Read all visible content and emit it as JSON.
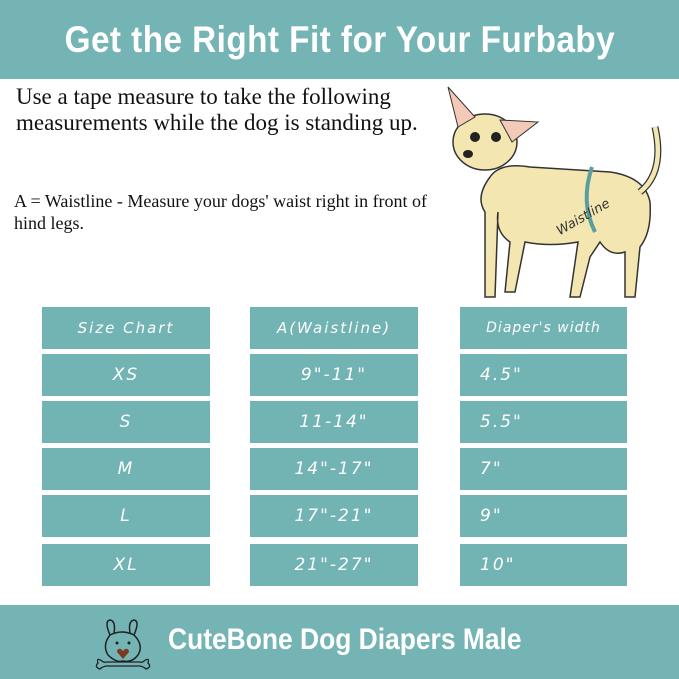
{
  "header": {
    "title": "Get the Right Fit for Your Furbaby"
  },
  "intro": {
    "text": "Use a tape measure to take the following measurements while the dog is standing up.",
    "note": "A = Waistline - Measure your dogs' waist right in front of hind legs."
  },
  "illustration": {
    "label": "Waistline"
  },
  "table": {
    "headers": [
      "Size Chart",
      "A(Waistline)",
      "Diaper's width"
    ],
    "rows": [
      [
        "XS",
        "9\"-11\"",
        "4.5\""
      ],
      [
        "S",
        "11-14\"",
        "5.5\""
      ],
      [
        "M",
        "14\"-17\"",
        "7\""
      ],
      [
        "L",
        "17\"-21\"",
        "9\""
      ],
      [
        "XL",
        "21\"-27\"",
        "10\""
      ]
    ]
  },
  "footer": {
    "title": "CuteBone Dog Diapers Male"
  },
  "colors": {
    "teal": "#74b4b5",
    "text": "#111111"
  }
}
